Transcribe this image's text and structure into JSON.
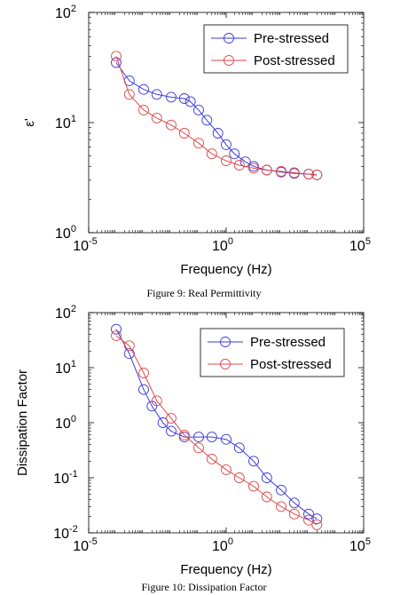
{
  "figures": [
    {
      "caption": "Figure 9: Real Permittivity"
    },
    {
      "caption": "Figure 10: Dissipation Factor"
    }
  ],
  "colors": {
    "pre": "#3a3adf",
    "post": "#e04a4a",
    "axis": "#000000"
  },
  "chart_data": [
    {
      "type": "line",
      "marker": "circle-open",
      "xlabel": "Frequency (Hz)",
      "ylabel": "ε'",
      "xscale": "log",
      "yscale": "log",
      "xlim": [
        1e-05,
        100000
      ],
      "ylim": [
        1,
        100
      ],
      "xticks": [
        {
          "base": "10",
          "exp": "-5"
        },
        {
          "base": "10",
          "exp": "0"
        },
        {
          "base": "10",
          "exp": "5"
        }
      ],
      "yticks": [
        {
          "base": "10",
          "exp": "0"
        },
        {
          "base": "10",
          "exp": "1"
        },
        {
          "base": "10",
          "exp": "2"
        }
      ],
      "legend_position": "top-right",
      "grid": false,
      "series": [
        {
          "name": "Pre-stressed",
          "points": [
            [
              0.0001,
              35
            ],
            [
              0.0003,
              24
            ],
            [
              0.001,
              20
            ],
            [
              0.003,
              18
            ],
            [
              0.01,
              17
            ],
            [
              0.03,
              16.5
            ],
            [
              0.05,
              15.5
            ],
            [
              0.1,
              13
            ],
            [
              0.2,
              10.5
            ],
            [
              0.5,
              8
            ],
            [
              1,
              6.3
            ],
            [
              2,
              5.2
            ],
            [
              5,
              4.4
            ],
            [
              10,
              4
            ],
            [
              30,
              3.7
            ],
            [
              100,
              3.55
            ],
            [
              300,
              3.45
            ],
            [
              1000,
              3.4
            ],
            [
              2000,
              3.35
            ]
          ]
        },
        {
          "name": "Post-stressed",
          "points": [
            [
              0.0001,
              40
            ],
            [
              0.0003,
              18
            ],
            [
              0.001,
              13
            ],
            [
              0.003,
              11
            ],
            [
              0.01,
              9.5
            ],
            [
              0.03,
              8
            ],
            [
              0.1,
              6.5
            ],
            [
              0.3,
              5.2
            ],
            [
              1,
              4.5
            ],
            [
              3,
              4.1
            ],
            [
              10,
              3.85
            ],
            [
              30,
              3.7
            ],
            [
              100,
              3.6
            ],
            [
              300,
              3.5
            ],
            [
              1000,
              3.4
            ],
            [
              2000,
              3.35
            ]
          ]
        }
      ]
    },
    {
      "type": "line",
      "marker": "circle-open",
      "xlabel": "Frequency (Hz)",
      "ylabel": "Dissipation Factor",
      "xscale": "log",
      "yscale": "log",
      "xlim": [
        1e-05,
        100000
      ],
      "ylim": [
        0.01,
        100
      ],
      "xticks": [
        {
          "base": "10",
          "exp": "-5"
        },
        {
          "base": "10",
          "exp": "0"
        },
        {
          "base": "10",
          "exp": "5"
        }
      ],
      "yticks": [
        {
          "base": "10",
          "exp": "-2"
        },
        {
          "base": "10",
          "exp": "-1"
        },
        {
          "base": "10",
          "exp": "0"
        },
        {
          "base": "10",
          "exp": "1"
        },
        {
          "base": "10",
          "exp": "2"
        }
      ],
      "legend_position": "top-right",
      "grid": false,
      "series": [
        {
          "name": "Pre-stressed",
          "points": [
            [
              0.0001,
              50
            ],
            [
              0.0003,
              18
            ],
            [
              0.001,
              4
            ],
            [
              0.002,
              2
            ],
            [
              0.005,
              1
            ],
            [
              0.01,
              0.7
            ],
            [
              0.03,
              0.55
            ],
            [
              0.1,
              0.55
            ],
            [
              0.3,
              0.55
            ],
            [
              1,
              0.5
            ],
            [
              3,
              0.35
            ],
            [
              10,
              0.2
            ],
            [
              30,
              0.1
            ],
            [
              100,
              0.06
            ],
            [
              300,
              0.035
            ],
            [
              1000,
              0.022
            ],
            [
              2000,
              0.018
            ]
          ]
        },
        {
          "name": "Post-stressed",
          "points": [
            [
              0.0001,
              38
            ],
            [
              0.0003,
              25
            ],
            [
              0.001,
              8
            ],
            [
              0.003,
              2.5
            ],
            [
              0.01,
              1.2
            ],
            [
              0.03,
              0.6
            ],
            [
              0.1,
              0.35
            ],
            [
              0.3,
              0.22
            ],
            [
              1,
              0.14
            ],
            [
              3,
              0.1
            ],
            [
              10,
              0.07
            ],
            [
              30,
              0.045
            ],
            [
              100,
              0.03
            ],
            [
              300,
              0.022
            ],
            [
              1000,
              0.017
            ],
            [
              2000,
              0.014
            ]
          ]
        }
      ]
    }
  ]
}
